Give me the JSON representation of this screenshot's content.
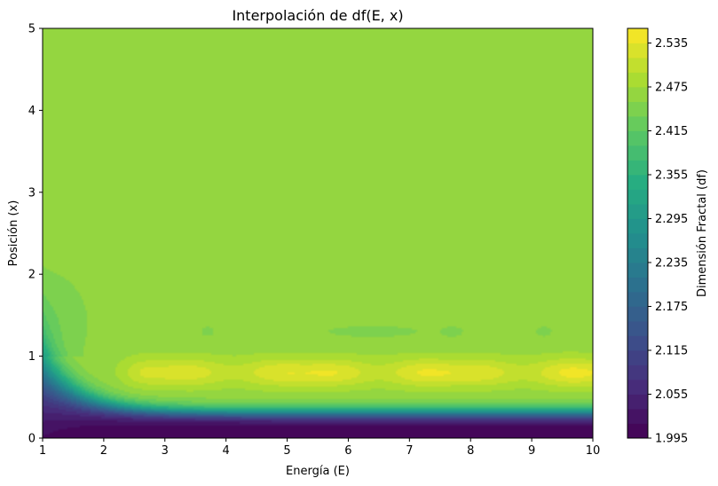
{
  "chart_data": {
    "type": "heatmap",
    "title": "Interpolación de df(E, x)",
    "xlabel": "Energía (E)",
    "ylabel": "Posición (x)",
    "xlim": [
      1,
      10
    ],
    "ylim": [
      0,
      5
    ],
    "x_ticks": [
      1,
      2,
      3,
      4,
      5,
      6,
      7,
      8,
      9,
      10
    ],
    "x_tick_labels": [
      "1",
      "2",
      "3",
      "4",
      "5",
      "6",
      "7",
      "8",
      "9",
      "10"
    ],
    "y_ticks": [
      0,
      1,
      2,
      3,
      4,
      5
    ],
    "y_tick_labels": [
      "0",
      "1",
      "2",
      "3",
      "4",
      "5"
    ],
    "colorbar": {
      "label": "Dimensión Fractal (df)",
      "colormap": "viridis",
      "range": [
        1.995,
        2.555
      ],
      "ticks": [
        1.995,
        2.055,
        2.115,
        2.175,
        2.235,
        2.295,
        2.355,
        2.415,
        2.475,
        2.535
      ],
      "tick_labels": [
        "1.995",
        "2.055",
        "2.115",
        "2.175",
        "2.235",
        "2.295",
        "2.355",
        "2.415",
        "2.475",
        "2.535"
      ]
    },
    "approx_field": {
      "background_df": 2.465,
      "boundary_df_at_x0": 1.995,
      "peak_band_df": 2.545,
      "peak_band_x": 0.8,
      "low_band_x": 1.3,
      "low_band_df": 2.45
    },
    "grid": false
  }
}
